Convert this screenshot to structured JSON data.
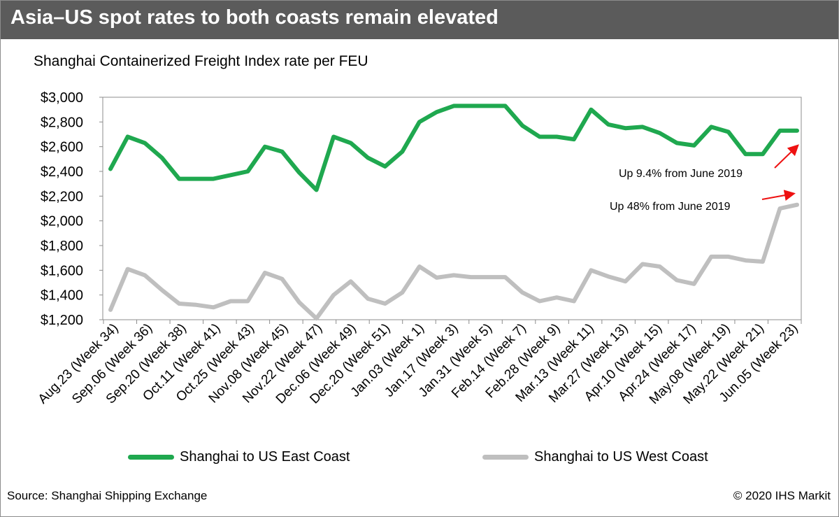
{
  "header": {
    "title": "Asia–US spot rates to both coasts remain elevated"
  },
  "colors": {
    "east": "#1fa84f",
    "west": "#bfbfbf",
    "annotation_arrow": "#ee1111",
    "title_bar": "#5b5b5b"
  },
  "chart_data": {
    "type": "line",
    "title": "Asia–US spot rates to both coasts remain elevated",
    "subtitle": "Shanghai Containerized Freight Index rate per FEU",
    "ylim": [
      1200,
      3000
    ],
    "y_ticks": [
      3000,
      2800,
      2600,
      2400,
      2200,
      2000,
      1800,
      1600,
      1400,
      1200
    ],
    "y_tick_labels": [
      "$3,000",
      "$2,800",
      "$2,600",
      "$2,400",
      "$2,200",
      "$2,000",
      "$1,800",
      "$1,600",
      "$1,400",
      "$1,200"
    ],
    "grid": false,
    "legend_position": "bottom",
    "x_labels": [
      "Aug.23 (Week 34)",
      "Sep.06 (Week 36)",
      "Sep.20 (Week 38)",
      "Oct.11 (Week 41)",
      "Oct.25 (Week 43)",
      "Nov.08 (Week 45)",
      "Nov.22 (Week 47)",
      "Dec.06 (Week 49)",
      "Dec.20 (Week 51)",
      "Jan.03 (Week 1)",
      "Jan.17 (Week 3)",
      "Jan.31 (Week 5)",
      "Feb.14 (Week 7)",
      "Feb.28 (Week 9)",
      "Mar.13 (Week 11)",
      "Mar.27 (Week 13)",
      "Apr.10 (Week 15)",
      "Apr.24 (Week 17)",
      "May.08 (Week 19)",
      "May.22 (Week 21)",
      "Jun.05 (Week 23)"
    ],
    "series": [
      {
        "name": "Shanghai to US East Coast",
        "color": "#1fa84f",
        "values": [
          2420,
          2680,
          2630,
          2510,
          2340,
          2340,
          2340,
          2370,
          2400,
          2600,
          2560,
          2390,
          2250,
          2680,
          2630,
          2510,
          2440,
          2560,
          2800,
          2880,
          2930,
          2930,
          2930,
          2930,
          2770,
          2680,
          2680,
          2660,
          2900,
          2780,
          2750,
          2760,
          2710,
          2630,
          2610,
          2760,
          2720,
          2540,
          2540,
          2730,
          2730
        ]
      },
      {
        "name": "Shanghai to US West Coast",
        "color": "#bfbfbf",
        "values": [
          1280,
          1610,
          1560,
          1440,
          1330,
          1320,
          1300,
          1350,
          1350,
          1580,
          1530,
          1340,
          1210,
          1400,
          1510,
          1370,
          1330,
          1420,
          1630,
          1540,
          1560,
          1545,
          1545,
          1545,
          1420,
          1350,
          1380,
          1350,
          1600,
          1550,
          1510,
          1650,
          1630,
          1520,
          1490,
          1710,
          1710,
          1680,
          1670,
          2100,
          2130
        ]
      }
    ],
    "annotations": [
      {
        "text": "Up 9.4% from June 2019",
        "series": "Shanghai to US East Coast"
      },
      {
        "text": "Up 48% from June 2019",
        "series": "Shanghai to US West Coast"
      }
    ]
  },
  "footer": {
    "source": "Source: Shanghai Shipping Exchange",
    "copyright": "© 2020 IHS Markit"
  }
}
